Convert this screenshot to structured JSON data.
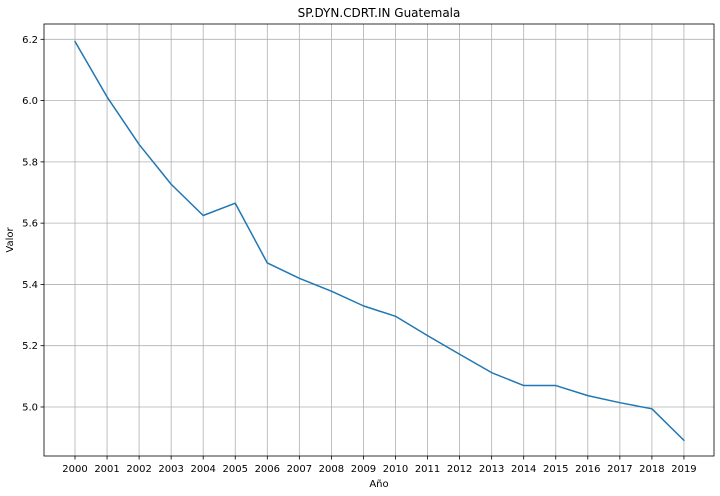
{
  "chart_data": {
    "type": "line",
    "title": "SP.DYN.CDRT.IN Guatemala",
    "xlabel": "Año",
    "ylabel": "Valor",
    "categories": [
      "2000",
      "2001",
      "2002",
      "2003",
      "2004",
      "2005",
      "2006",
      "2007",
      "2008",
      "2009",
      "2010",
      "2011",
      "2012",
      "2013",
      "2014",
      "2015",
      "2016",
      "2017",
      "2018",
      "2019"
    ],
    "series": [
      {
        "values": [
          6.193,
          6.012,
          5.857,
          5.727,
          5.625,
          5.665,
          5.47,
          5.42,
          5.378,
          5.33,
          5.296,
          5.233,
          5.172,
          5.112,
          5.07,
          5.07,
          5.037,
          5.014,
          4.994,
          4.891
        ],
        "color": "#1f77b4"
      }
    ],
    "yticks": [
      "5.0",
      "5.2",
      "5.4",
      "5.6",
      "5.8",
      "6.0",
      "6.2"
    ],
    "ylim": [
      4.84,
      6.25
    ],
    "grid": true,
    "legend": "none"
  }
}
